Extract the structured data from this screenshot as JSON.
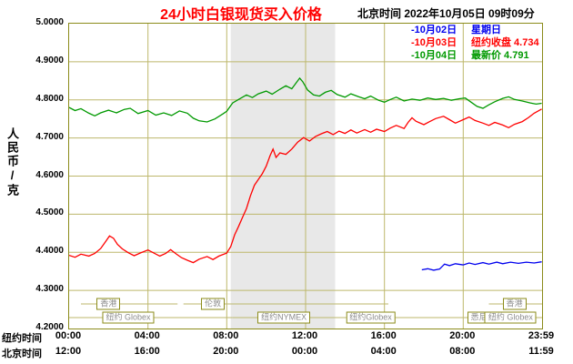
{
  "header": {
    "title": "24小时白银现货买入价格",
    "timestamp": "北京时间  2022年10月05日 09时09分"
  },
  "legend": [
    {
      "label": "-10月02日",
      "note": "星期日",
      "color": "#0000ee"
    },
    {
      "label": "-10月03日",
      "note": "纽约收盘 4.734",
      "color": "#ff0000"
    },
    {
      "label": "-10月04日",
      "note": "最新价 4.791",
      "color": "#009900"
    }
  ],
  "y_axis": {
    "unit_label": "人民币/克",
    "max": 5.0,
    "min": 4.2,
    "step": 0.1,
    "tick_labels": [
      "5.0000",
      "4.9000",
      "4.8000",
      "4.7000",
      "4.6000",
      "4.5000",
      "4.4000",
      "4.3000",
      "4.2000"
    ]
  },
  "x_axis": {
    "rows": [
      {
        "prefix": "纽约时间",
        "ticks": [
          {
            "hour": 0,
            "label": "00:00"
          },
          {
            "hour": 4,
            "label": "04:00"
          },
          {
            "hour": 8,
            "label": "08:00"
          },
          {
            "hour": 12,
            "label": "12:00"
          },
          {
            "hour": 16,
            "label": "16:00"
          },
          {
            "hour": 20,
            "label": "20:00"
          },
          {
            "hour": 24,
            "label": "23:59"
          }
        ]
      },
      {
        "prefix": "北京时间",
        "ticks": [
          {
            "hour": 0,
            "label": "12:00"
          },
          {
            "hour": 4,
            "label": "16:00"
          },
          {
            "hour": 8,
            "label": "20:00"
          },
          {
            "hour": 12,
            "label": "00:00"
          },
          {
            "hour": 16,
            "label": "04:00"
          },
          {
            "hour": 20,
            "label": "08:00"
          },
          {
            "hour": 24,
            "label": "11:59"
          }
        ]
      }
    ]
  },
  "sessions": [
    {
      "row": 0,
      "label": "香港",
      "start": 0.6,
      "end": 5.5,
      "label_hour": 2.0
    },
    {
      "row": 0,
      "label": "伦敦",
      "start": 5.8,
      "end": 16.2,
      "label_hour": 7.3
    },
    {
      "row": 0,
      "label": "香港",
      "start": 21.3,
      "end": 24,
      "label_hour": 22.6
    },
    {
      "row": 1,
      "label": "纽约 Globex",
      "start": 0,
      "end": 8.3,
      "label_hour": 3.0
    },
    {
      "row": 1,
      "label": "纽约NYMEX",
      "start": 8.3,
      "end": 13.5,
      "label_hour": 10.9
    },
    {
      "row": 1,
      "label": "纽约Globex",
      "start": 13.5,
      "end": 19.2,
      "label_hour": 15.3
    },
    {
      "row": 1,
      "label": "悉尼",
      "start": 19.2,
      "end": 24,
      "label_hour": 20.8
    },
    {
      "row": 1,
      "label": "纽约 Globex",
      "start": 21.6,
      "end": 24,
      "label_hour": 22.4
    }
  ],
  "shaded_region": {
    "start_hour": 8.2,
    "end_hour": 13.5
  },
  "colors": {
    "border": "#8b8b1a",
    "grid": "#bdb76b",
    "band": "#e8e8e8",
    "session_text": "#8c8c8c",
    "title_red": "#ff0000"
  },
  "chart_data": {
    "type": "line",
    "title": "24小时白银现货买入价格",
    "ylabel": "人民币/克",
    "xlabel": "纽约时间 (小时)",
    "xlim": [
      0,
      24
    ],
    "ylim": [
      4.2,
      5.0
    ],
    "grid": true,
    "legend_position": "top-right",
    "series": [
      {
        "name": "10月02日 (星期日)",
        "color": "#0000ee",
        "points": [
          [
            17.9,
            4.354
          ],
          [
            18.2,
            4.357
          ],
          [
            18.5,
            4.353
          ],
          [
            18.8,
            4.356
          ],
          [
            19.05,
            4.369
          ],
          [
            19.3,
            4.365
          ],
          [
            19.6,
            4.37
          ],
          [
            20,
            4.367
          ],
          [
            20.3,
            4.372
          ],
          [
            20.6,
            4.368
          ],
          [
            21,
            4.373
          ],
          [
            21.3,
            4.369
          ],
          [
            21.7,
            4.374
          ],
          [
            22,
            4.37
          ],
          [
            22.4,
            4.374
          ],
          [
            22.8,
            4.371
          ],
          [
            23.2,
            4.374
          ],
          [
            23.6,
            4.372
          ],
          [
            23.98,
            4.375
          ]
        ]
      },
      {
        "name": "10月03日 (纽约收盘 4.734)",
        "color": "#ff0000",
        "points": [
          [
            0,
            4.392
          ],
          [
            0.3,
            4.387
          ],
          [
            0.6,
            4.395
          ],
          [
            1,
            4.39
          ],
          [
            1.3,
            4.397
          ],
          [
            1.6,
            4.41
          ],
          [
            1.85,
            4.428
          ],
          [
            2.05,
            4.443
          ],
          [
            2.25,
            4.437
          ],
          [
            2.45,
            4.421
          ],
          [
            2.7,
            4.409
          ],
          [
            3,
            4.399
          ],
          [
            3.3,
            4.391
          ],
          [
            3.6,
            4.398
          ],
          [
            4,
            4.406
          ],
          [
            4.3,
            4.398
          ],
          [
            4.6,
            4.39
          ],
          [
            4.9,
            4.397
          ],
          [
            5.15,
            4.407
          ],
          [
            5.4,
            4.397
          ],
          [
            5.7,
            4.386
          ],
          [
            6,
            4.379
          ],
          [
            6.3,
            4.373
          ],
          [
            6.6,
            4.382
          ],
          [
            7,
            4.389
          ],
          [
            7.3,
            4.381
          ],
          [
            7.6,
            4.39
          ],
          [
            8,
            4.398
          ],
          [
            8.2,
            4.415
          ],
          [
            8.4,
            4.446
          ],
          [
            8.6,
            4.468
          ],
          [
            8.8,
            4.492
          ],
          [
            9,
            4.515
          ],
          [
            9.2,
            4.548
          ],
          [
            9.4,
            4.576
          ],
          [
            9.6,
            4.591
          ],
          [
            9.8,
            4.606
          ],
          [
            10,
            4.626
          ],
          [
            10.2,
            4.654
          ],
          [
            10.35,
            4.671
          ],
          [
            10.5,
            4.649
          ],
          [
            10.7,
            4.661
          ],
          [
            11,
            4.657
          ],
          [
            11.3,
            4.671
          ],
          [
            11.6,
            4.689
          ],
          [
            11.9,
            4.701
          ],
          [
            12.2,
            4.692
          ],
          [
            12.5,
            4.704
          ],
          [
            12.8,
            4.711
          ],
          [
            13.1,
            4.717
          ],
          [
            13.4,
            4.709
          ],
          [
            13.7,
            4.718
          ],
          [
            14,
            4.712
          ],
          [
            14.3,
            4.721
          ],
          [
            14.6,
            4.713
          ],
          [
            15,
            4.722
          ],
          [
            15.3,
            4.715
          ],
          [
            15.6,
            4.723
          ],
          [
            16,
            4.717
          ],
          [
            16.3,
            4.726
          ],
          [
            16.6,
            4.733
          ],
          [
            17,
            4.725
          ],
          [
            17.2,
            4.741
          ],
          [
            17.4,
            4.753
          ],
          [
            17.6,
            4.744
          ],
          [
            18,
            4.735
          ],
          [
            18.3,
            4.743
          ],
          [
            18.6,
            4.751
          ],
          [
            19,
            4.757
          ],
          [
            19.3,
            4.748
          ],
          [
            19.6,
            4.739
          ],
          [
            20,
            4.748
          ],
          [
            20.3,
            4.755
          ],
          [
            20.6,
            4.746
          ],
          [
            21,
            4.739
          ],
          [
            21.3,
            4.733
          ],
          [
            21.6,
            4.741
          ],
          [
            22,
            4.734
          ],
          [
            22.3,
            4.727
          ],
          [
            22.6,
            4.736
          ],
          [
            23,
            4.743
          ],
          [
            23.3,
            4.753
          ],
          [
            23.6,
            4.765
          ],
          [
            23.98,
            4.776
          ]
        ]
      },
      {
        "name": "10月04日 (最新价 4.791)",
        "color": "#009900",
        "points": [
          [
            0,
            4.78
          ],
          [
            0.3,
            4.772
          ],
          [
            0.6,
            4.777
          ],
          [
            1,
            4.765
          ],
          [
            1.3,
            4.758
          ],
          [
            1.6,
            4.766
          ],
          [
            2,
            4.773
          ],
          [
            2.4,
            4.766
          ],
          [
            2.8,
            4.775
          ],
          [
            3.1,
            4.778
          ],
          [
            3.5,
            4.764
          ],
          [
            4,
            4.772
          ],
          [
            4.4,
            4.76
          ],
          [
            4.8,
            4.766
          ],
          [
            5.2,
            4.759
          ],
          [
            5.6,
            4.771
          ],
          [
            6,
            4.765
          ],
          [
            6.3,
            4.752
          ],
          [
            6.6,
            4.745
          ],
          [
            7,
            4.742
          ],
          [
            7.4,
            4.75
          ],
          [
            7.8,
            4.763
          ],
          [
            8,
            4.77
          ],
          [
            8.3,
            4.792
          ],
          [
            8.6,
            4.801
          ],
          [
            9,
            4.813
          ],
          [
            9.3,
            4.806
          ],
          [
            9.6,
            4.816
          ],
          [
            10,
            4.823
          ],
          [
            10.3,
            4.815
          ],
          [
            10.7,
            4.828
          ],
          [
            11,
            4.837
          ],
          [
            11.3,
            4.829
          ],
          [
            11.55,
            4.847
          ],
          [
            11.7,
            4.857
          ],
          [
            11.85,
            4.848
          ],
          [
            12.1,
            4.826
          ],
          [
            12.4,
            4.813
          ],
          [
            12.7,
            4.81
          ],
          [
            13,
            4.82
          ],
          [
            13.3,
            4.825
          ],
          [
            13.6,
            4.814
          ],
          [
            14,
            4.807
          ],
          [
            14.3,
            4.816
          ],
          [
            14.7,
            4.808
          ],
          [
            15,
            4.803
          ],
          [
            15.3,
            4.81
          ],
          [
            15.7,
            4.799
          ],
          [
            16,
            4.794
          ],
          [
            16.3,
            4.801
          ],
          [
            16.6,
            4.807
          ],
          [
            17,
            4.797
          ],
          [
            17.4,
            4.802
          ],
          [
            17.8,
            4.799
          ],
          [
            18.2,
            4.805
          ],
          [
            18.6,
            4.801
          ],
          [
            19,
            4.804
          ],
          [
            19.4,
            4.799
          ],
          [
            19.8,
            4.803
          ],
          [
            20.1,
            4.805
          ],
          [
            20.4,
            4.794
          ],
          [
            20.7,
            4.783
          ],
          [
            21,
            4.778
          ],
          [
            21.3,
            4.787
          ],
          [
            21.6,
            4.795
          ],
          [
            22,
            4.804
          ],
          [
            22.3,
            4.808
          ],
          [
            22.6,
            4.801
          ],
          [
            23,
            4.797
          ],
          [
            23.4,
            4.792
          ],
          [
            23.7,
            4.789
          ],
          [
            23.98,
            4.791
          ]
        ]
      }
    ]
  }
}
